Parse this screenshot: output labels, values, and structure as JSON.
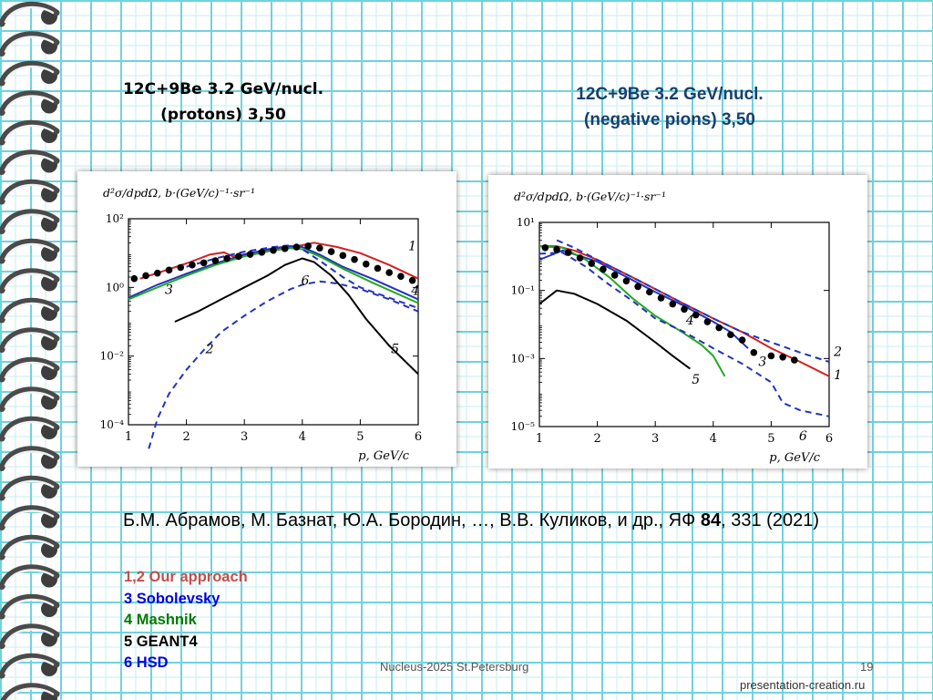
{
  "slide": {
    "title_left": {
      "line1": "12C+9Be 3.2 GeV/nucl.",
      "line2": "(protons) 3,50"
    },
    "title_right": {
      "line1": "12C+9Be 3.2 GeV/nucl.",
      "line2": "(negative pions) 3,50"
    },
    "citation": {
      "before": "Б.М. Абрамов, М. Базнат, Ю.А. Бородин, …, В.В. Куликов, и др., ЯФ ",
      "bold": "84",
      "after": ", 331 (2021)"
    },
    "legend": [
      {
        "text": "1,2 Our approach",
        "color": "#c0504d"
      },
      {
        "text": "3 Sobolevsky",
        "color": "#0000e0"
      },
      {
        "text": "4 Mashnik",
        "color": "#007a00"
      },
      {
        "text": "5 GEANT4",
        "color": "#000000"
      },
      {
        "text": "6 HSD",
        "color": "#0000e0"
      }
    ],
    "footer_center": "Nucleus-2025 St.Petersburg",
    "page_number": "19",
    "site": "presentation-creation.ru"
  },
  "chart_data": [
    {
      "type": "line",
      "ylabel": "d²σ/dpdΩ,  b·(GeV/c)⁻¹·sr⁻¹",
      "xlabel": "p,  GeV/c",
      "xlim": [
        1,
        6
      ],
      "ylog": true,
      "ylim_exp": [
        -4,
        2
      ],
      "xticks": [
        "1",
        "2",
        "3",
        "4",
        "5",
        "6"
      ],
      "yticks": [
        "10²",
        "10⁰",
        "10⁻²",
        "10⁻⁴"
      ],
      "ytick_exps": [
        2,
        0,
        -2,
        -4
      ],
      "grid": false,
      "series": [
        {
          "label": "1",
          "color": "#d42020",
          "dash": false,
          "x": [
            1.2,
            1.6,
            2.0,
            2.4,
            2.65,
            2.8,
            3.1,
            3.5,
            4.0,
            4.2,
            4.6,
            5.0,
            5.5,
            6.0
          ],
          "y": [
            1.8,
            3.0,
            5.0,
            9.0,
            10.5,
            8.0,
            10.0,
            13.0,
            17.0,
            20.0,
            15.0,
            10.0,
            4.5,
            1.8
          ]
        },
        {
          "label": "2",
          "color": "#2233bb",
          "dash": true,
          "x": [
            1.35,
            1.5,
            1.7,
            2.0,
            2.3,
            2.6,
            3.0,
            3.4,
            3.8,
            4.0,
            4.3,
            4.6,
            5.0,
            5.5,
            6.0
          ],
          "y": [
            2e-05,
            0.00015,
            0.0008,
            0.004,
            0.015,
            0.05,
            0.15,
            0.4,
            0.9,
            1.2,
            1.5,
            1.3,
            0.9,
            0.45,
            0.2
          ]
        },
        {
          "label": "3",
          "color": "#2233bb",
          "dash": false,
          "x": [
            1.0,
            1.5,
            2.0,
            2.5,
            3.0,
            3.5,
            3.8,
            4.0,
            4.3,
            4.7,
            5.2,
            5.6,
            6.0
          ],
          "y": [
            0.5,
            1.2,
            2.5,
            5.0,
            9.0,
            14.0,
            16.0,
            15.0,
            9.0,
            4.0,
            1.8,
            0.9,
            0.45
          ]
        },
        {
          "label": "4",
          "color": "#22aa22",
          "dash": false,
          "x": [
            1.0,
            1.5,
            2.0,
            2.5,
            3.0,
            3.5,
            3.8,
            4.0,
            4.3,
            4.7,
            5.2,
            5.6,
            6.0
          ],
          "y": [
            0.45,
            1.0,
            2.2,
            4.5,
            8.0,
            12.0,
            14.0,
            13.0,
            8.0,
            3.5,
            1.4,
            0.7,
            0.35
          ]
        },
        {
          "label": "5",
          "color": "#000000",
          "dash": false,
          "x": [
            1.8,
            2.2,
            2.6,
            3.0,
            3.4,
            3.7,
            4.0,
            4.2,
            4.5,
            4.8,
            5.1,
            5.5,
            6.0
          ],
          "y": [
            0.1,
            0.2,
            0.45,
            1.0,
            2.2,
            4.5,
            7.0,
            5.5,
            2.2,
            0.6,
            0.12,
            0.02,
            0.003
          ]
        },
        {
          "label": "6",
          "color": "#2233bb",
          "dash": true,
          "x": [
            2.0,
            2.5,
            3.0,
            3.5,
            3.8,
            4.0,
            4.3,
            4.7,
            5.0,
            5.5,
            6.0
          ],
          "y": [
            4.0,
            7.0,
            11.0,
            15.0,
            17.0,
            13.0,
            6.0,
            2.0,
            1.0,
            0.5,
            0.25
          ]
        },
        {
          "label": "data",
          "color": "#000000",
          "marker": true,
          "x": [
            1.1,
            1.3,
            1.5,
            1.7,
            1.9,
            2.1,
            2.3,
            2.5,
            2.7,
            2.9,
            3.1,
            3.3,
            3.5,
            3.7,
            3.9,
            4.1,
            4.3,
            4.5,
            4.7,
            4.9,
            5.1,
            5.3,
            5.5,
            5.7,
            5.9
          ],
          "y": [
            1.8,
            2.2,
            2.6,
            3.2,
            3.8,
            4.5,
            5.2,
            6.0,
            7.0,
            8.0,
            9.2,
            10.5,
            12.0,
            13.5,
            15.0,
            16.0,
            14.0,
            11.0,
            8.5,
            6.5,
            4.8,
            3.6,
            2.7,
            2.1,
            1.6
          ]
        }
      ],
      "curve_labels": [
        {
          "text": "1",
          "x": 5.9,
          "y": 12
        },
        {
          "text": "2",
          "x": 2.4,
          "y": 0.012
        },
        {
          "text": "3",
          "x": 1.7,
          "y": 0.65
        },
        {
          "text": "4",
          "x": 5.95,
          "y": 0.6
        },
        {
          "text": "5",
          "x": 5.6,
          "y": 0.012
        },
        {
          "text": "6",
          "x": 4.05,
          "y": 1.2
        }
      ]
    },
    {
      "type": "line",
      "ylabel": "d²σ/dpdΩ,  b·(GeV/c)⁻¹·sr⁻¹",
      "xlabel": "p,  GeV/c",
      "xlim": [
        1,
        6
      ],
      "ylog": true,
      "ylim_exp": [
        -5,
        1
      ],
      "xticks": [
        "1",
        "2",
        "3",
        "4",
        "5",
        "6"
      ],
      "yticks": [
        "10¹",
        "10⁻¹",
        "10⁻³",
        "10⁻⁵"
      ],
      "ytick_exps": [
        1,
        -1,
        -3,
        -5
      ],
      "grid": false,
      "series": [
        {
          "label": "1",
          "color": "#d42020",
          "dash": false,
          "x": [
            1.0,
            1.3,
            1.6,
            2.0,
            2.5,
            3.0,
            3.5,
            4.0,
            4.5,
            5.0,
            5.5,
            6.0
          ],
          "y": [
            2.0,
            2.0,
            1.5,
            0.8,
            0.3,
            0.11,
            0.04,
            0.015,
            0.006,
            0.002,
            0.0008,
            0.0003
          ]
        },
        {
          "label": "2",
          "color": "#2233bb",
          "dash": true,
          "x": [
            1.3,
            1.6,
            2.0,
            2.5,
            3.0,
            3.5,
            4.0,
            4.5,
            5.0,
            5.5,
            6.0
          ],
          "y": [
            3.0,
            1.8,
            0.8,
            0.3,
            0.11,
            0.04,
            0.015,
            0.006,
            0.003,
            0.0015,
            0.0008
          ]
        },
        {
          "label": "3",
          "color": "#2233bb",
          "dash": false,
          "x": [
            1.0,
            1.4,
            2.0,
            2.5,
            3.0,
            3.5,
            4.0,
            4.3,
            4.6
          ],
          "y": [
            0.8,
            1.5,
            0.7,
            0.25,
            0.09,
            0.035,
            0.012,
            0.006,
            0.002
          ]
        },
        {
          "label": "4",
          "color": "#22aa22",
          "dash": false,
          "x": [
            1.0,
            1.4,
            1.8,
            2.2,
            2.6,
            3.0,
            3.4,
            3.8,
            4.0,
            4.2
          ],
          "y": [
            2.0,
            1.8,
            0.8,
            0.25,
            0.06,
            0.018,
            0.007,
            0.0025,
            0.0012,
            0.0003
          ]
        },
        {
          "label": "5",
          "color": "#000000",
          "dash": false,
          "x": [
            1.0,
            1.3,
            1.6,
            2.0,
            2.5,
            3.0,
            3.3,
            3.6
          ],
          "y": [
            0.04,
            0.1,
            0.08,
            0.04,
            0.013,
            0.003,
            0.0012,
            0.0005
          ]
        },
        {
          "label": "6",
          "color": "#2233bb",
          "dash": true,
          "x": [
            1.0,
            1.4,
            1.8,
            2.2,
            2.6,
            3.0,
            3.5,
            4.0,
            4.5,
            5.0,
            5.2,
            5.5,
            6.0
          ],
          "y": [
            1.2,
            1.3,
            0.5,
            0.15,
            0.05,
            0.015,
            0.006,
            0.002,
            0.0007,
            0.0002,
            5e-05,
            3e-05,
            2e-05
          ]
        },
        {
          "label": "data",
          "color": "#000000",
          "marker": true,
          "x": [
            1.1,
            1.3,
            1.5,
            1.7,
            1.9,
            2.1,
            2.3,
            2.5,
            2.7,
            2.9,
            3.1,
            3.3,
            3.5,
            3.7,
            3.9,
            4.1,
            4.3,
            4.5,
            4.7,
            5.0,
            5.2,
            5.4
          ],
          "y": [
            1.8,
            1.6,
            1.3,
            0.9,
            0.62,
            0.42,
            0.28,
            0.19,
            0.13,
            0.09,
            0.06,
            0.04,
            0.028,
            0.019,
            0.012,
            0.008,
            0.005,
            0.0035,
            0.0015,
            0.0012,
            0.0011,
            0.0009
          ]
        }
      ],
      "curve_labels": [
        {
          "text": "1",
          "x": 6.15,
          "y": 0.00025
        },
        {
          "text": "2",
          "x": 6.15,
          "y": 0.0012
        },
        {
          "text": "3",
          "x": 4.85,
          "y": 0.0006
        },
        {
          "text": "4",
          "x": 3.6,
          "y": 0.01
        },
        {
          "text": "5",
          "x": 3.7,
          "y": 0.00018
        },
        {
          "text": "6",
          "x": 5.55,
          "y": 4e-06
        }
      ]
    }
  ]
}
